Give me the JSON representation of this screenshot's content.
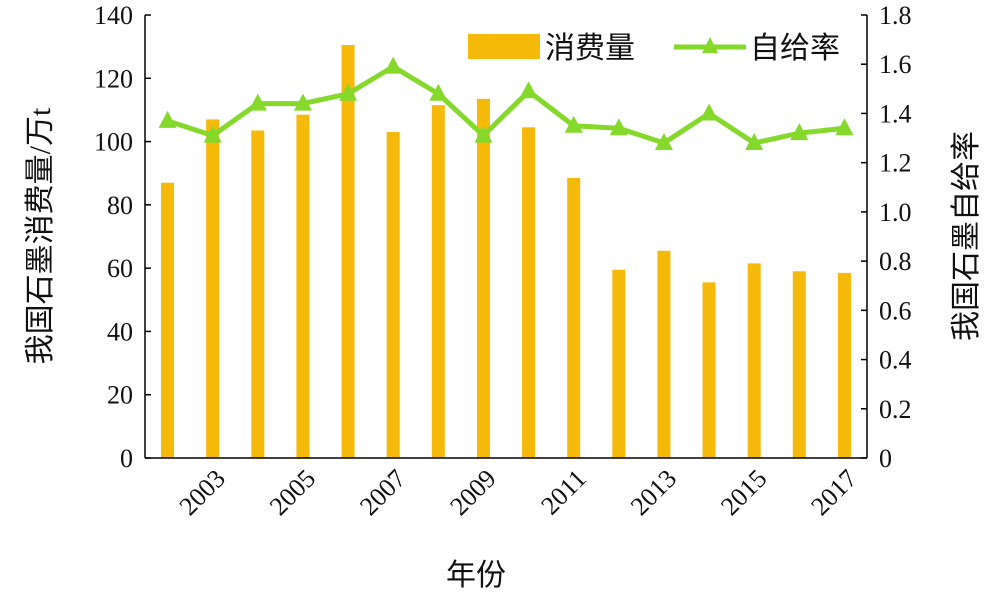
{
  "chart_data": {
    "type": "bar+line",
    "title": "",
    "xlabel": "年份",
    "ylabel_left": "我国石墨消费量/万t",
    "ylabel_right": "我国石墨自给率",
    "categories": [
      "2002",
      "2003",
      "2004",
      "2005",
      "2006",
      "2007",
      "2008",
      "2009",
      "2010",
      "2011",
      "2012",
      "2013",
      "2014",
      "2015",
      "2016",
      "2017"
    ],
    "x_tick_labels": [
      "2003",
      "2005",
      "2007",
      "2009",
      "2011",
      "2013",
      "2015",
      "2017"
    ],
    "ylim_left": [
      0,
      140
    ],
    "yticks_left": [
      "0",
      "20",
      "40",
      "60",
      "80",
      "100",
      "120",
      "140"
    ],
    "ylim_right": [
      0,
      1.8
    ],
    "yticks_right": [
      "0",
      "0.2",
      "0.4",
      "0.6",
      "0.8",
      "1.0",
      "1.2",
      "1.4",
      "1.6",
      "1.8"
    ],
    "legend_position": "top-right",
    "grid": false,
    "series": [
      {
        "name": "消费量",
        "type": "bar",
        "axis": "left",
        "color": "#F5B90A",
        "values": [
          87,
          107,
          103.5,
          108.5,
          130.5,
          103,
          111.5,
          113.5,
          104.5,
          88.5,
          59.5,
          65.5,
          55.5,
          61.5,
          59,
          58.5
        ]
      },
      {
        "name": "自给率",
        "type": "line",
        "axis": "right",
        "color": "#84D92A",
        "marker": "triangle",
        "values": [
          1.37,
          1.31,
          1.44,
          1.44,
          1.48,
          1.59,
          1.48,
          1.31,
          1.49,
          1.35,
          1.34,
          1.28,
          1.4,
          1.28,
          1.32,
          1.34
        ]
      }
    ]
  }
}
